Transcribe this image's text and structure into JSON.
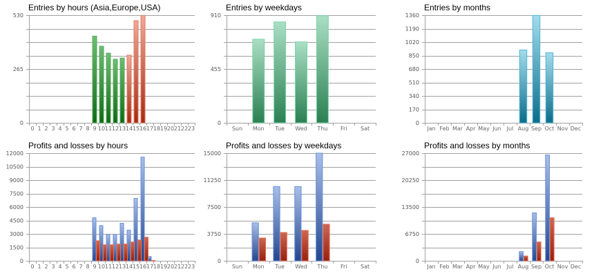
{
  "colors": {
    "green_top": "#6dbf72",
    "green_bottom": "#0e6a12",
    "green_border": "#5aaa60",
    "orange_top": "#eeaa98",
    "orange_bottom": "#a82a10",
    "orange_border": "#e07a62",
    "teal_top": "#a4dcec",
    "teal_bottom": "#0c6d8a",
    "teal_border": "#4cb6d6",
    "mint_top": "#aadfc4",
    "mint_bottom": "#2a8052",
    "mint_border": "#7cd4a8",
    "blue_top": "#a8bfe8",
    "blue_bottom": "#24468e",
    "blue_border": "#6a8fd8",
    "red_top": "#cc6850",
    "red_bottom": "#96200e",
    "red_border": "#e8705a"
  },
  "chart_data": [
    {
      "id": "entries-hours",
      "type": "bar",
      "title": "Entries by hours (Asia,Europe,USA)",
      "categories": [
        "0",
        "1",
        "2",
        "3",
        "4",
        "5",
        "6",
        "7",
        "8",
        "9",
        "10",
        "11",
        "12",
        "13",
        "14",
        "15",
        "16",
        "17",
        "18",
        "19",
        "20",
        "21",
        "22",
        "23"
      ],
      "series": [
        {
          "name": "Entries",
          "values": [
            0,
            0,
            0,
            0,
            0,
            0,
            0,
            0,
            0,
            427,
            377,
            343,
            313,
            319,
            333,
            503,
            528,
            0,
            0,
            0,
            0,
            0,
            0,
            0
          ],
          "color_by_category": [
            "green",
            "green",
            "green",
            "green",
            "green",
            "green",
            "green",
            "green",
            "green",
            "green",
            "green",
            "green",
            "green",
            "green",
            "orange",
            "orange",
            "orange",
            "orange",
            "orange",
            "orange",
            "orange",
            "orange",
            "orange",
            "orange"
          ]
        }
      ],
      "yticks": [
        0,
        265,
        530
      ],
      "gridlines": 8,
      "ylim": [
        0,
        530
      ],
      "grid": true,
      "xlabel": "",
      "ylabel": ""
    },
    {
      "id": "entries-weekdays",
      "type": "bar",
      "title": "Entries by weekdays",
      "categories": [
        "Sun",
        "Mon",
        "Tue",
        "Wed",
        "Thu",
        "Fri",
        "Sat"
      ],
      "series": [
        {
          "name": "Entries",
          "values": [
            0,
            707,
            853,
            684,
            906,
            0,
            0
          ],
          "color": "mint"
        }
      ],
      "yticks": [
        0,
        455,
        910
      ],
      "gridlines": 8,
      "ylim": [
        0,
        910
      ],
      "grid": true,
      "xlabel": "",
      "ylabel": ""
    },
    {
      "id": "entries-months",
      "type": "bar",
      "title": "Entries by months",
      "categories": [
        "Jan",
        "Feb",
        "Mar",
        "Apr",
        "May",
        "Jun",
        "Jul",
        "Aug",
        "Sep",
        "Oct",
        "Nov",
        "Dec"
      ],
      "series": [
        {
          "name": "Entries",
          "values": [
            0,
            0,
            0,
            0,
            0,
            0,
            0,
            920,
            1357,
            885,
            0,
            0
          ],
          "color": "teal"
        }
      ],
      "yticks": [
        0,
        170,
        340,
        510,
        680,
        850,
        1020,
        1190,
        1360
      ],
      "gridlines": 8,
      "ylim": [
        0,
        1360
      ],
      "grid": true,
      "xlabel": "",
      "ylabel": ""
    },
    {
      "id": "pl-hours",
      "type": "bar",
      "title": "Profits and losses by hours",
      "categories": [
        "0",
        "1",
        "2",
        "3",
        "4",
        "5",
        "6",
        "7",
        "8",
        "9",
        "10",
        "11",
        "12",
        "13",
        "14",
        "15",
        "16",
        "17",
        "18",
        "19",
        "20",
        "21",
        "22",
        "23"
      ],
      "series": [
        {
          "name": "Profits",
          "values": [
            0,
            0,
            0,
            0,
            0,
            0,
            0,
            0,
            0,
            4800,
            3930,
            2950,
            2950,
            4190,
            3420,
            6960,
            11560,
            480,
            0,
            0,
            0,
            0,
            0,
            0
          ],
          "color": "blue"
        },
        {
          "name": "Losses",
          "values": [
            0,
            0,
            0,
            0,
            0,
            0,
            0,
            0,
            0,
            2240,
            1790,
            1790,
            1870,
            1870,
            2100,
            2330,
            2640,
            40,
            0,
            0,
            0,
            0,
            0,
            0
          ],
          "color": "red"
        }
      ],
      "yticks": [
        0,
        1500,
        3000,
        4500,
        6000,
        7500,
        9000,
        10500,
        12000
      ],
      "gridlines": 8,
      "ylim": [
        0,
        12000
      ],
      "grid": true,
      "xlabel": "",
      "ylabel": ""
    },
    {
      "id": "pl-weekdays",
      "type": "bar",
      "title": "Profits and losses by weekdays",
      "categories": [
        "Sun",
        "Mon",
        "Tue",
        "Wed",
        "Thu",
        "Fri",
        "Sat"
      ],
      "series": [
        {
          "name": "Profits",
          "values": [
            0,
            5300,
            10340,
            10340,
            15000,
            0,
            0
          ],
          "color": "blue"
        },
        {
          "name": "Losses",
          "values": [
            0,
            3180,
            3950,
            4240,
            5110,
            0,
            0
          ],
          "color": "red"
        }
      ],
      "yticks": [
        0,
        3750,
        7500,
        11250,
        15000
      ],
      "gridlines": 8,
      "ylim": [
        0,
        15000
      ],
      "grid": true,
      "xlabel": "",
      "ylabel": ""
    },
    {
      "id": "pl-months",
      "type": "bar",
      "title": "Profits and losses by months",
      "categories": [
        "Jan",
        "Feb",
        "Mar",
        "Apr",
        "May",
        "Jun",
        "Jul",
        "Aug",
        "Sep",
        "Oct",
        "Nov",
        "Dec"
      ],
      "series": [
        {
          "name": "Profits",
          "values": [
            0,
            0,
            0,
            0,
            0,
            0,
            0,
            2310,
            12030,
            26540,
            0,
            0
          ],
          "color": "blue"
        },
        {
          "name": "Losses",
          "values": [
            0,
            0,
            0,
            0,
            0,
            0,
            0,
            1210,
            4740,
            10810,
            0,
            0
          ],
          "color": "red"
        }
      ],
      "yticks": [
        0,
        6750,
        13500,
        20250,
        27000
      ],
      "gridlines": 8,
      "ylim": [
        0,
        27000
      ],
      "grid": true,
      "xlabel": "",
      "ylabel": ""
    }
  ]
}
